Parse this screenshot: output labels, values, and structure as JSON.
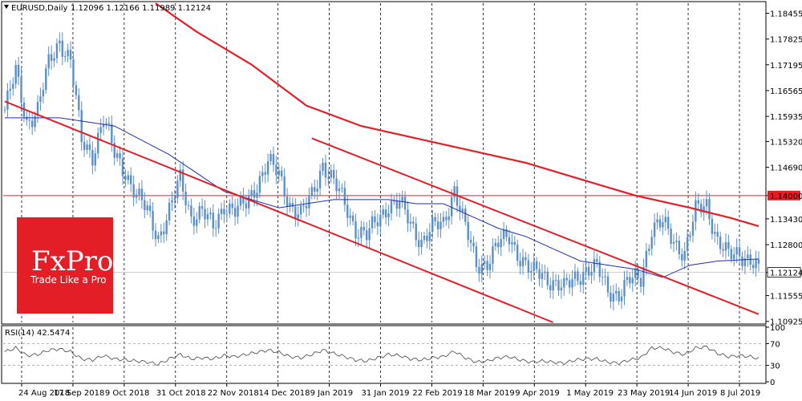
{
  "header": {
    "symbol": "EURUSD,Daily",
    "ohlc": "1.12096 1.12166 1.11989 1.12124"
  },
  "rsi_label": "RSI(14) 42.5474",
  "branding": {
    "logo_text": "FxPro",
    "tagline": "Trade Like a Pro",
    "color": "#e41e26"
  },
  "colors": {
    "candle": "#5b8fc9",
    "ma_fast": "#1e2dbe",
    "ma_slow": "#e41e26",
    "channel": "#e41e26",
    "level": "#e41e26",
    "rsi": "#555555"
  },
  "chart_data": [
    {
      "type": "candlestick",
      "symbol": "EURUSD",
      "timeframe": "Daily",
      "ylim": [
        1.109,
        1.187
      ],
      "y_ticks": [
        "1.18455",
        "1.17825",
        "1.17195",
        "1.16565",
        "1.15935",
        "1.15320",
        "1.14690",
        "1.14000",
        "1.13430",
        "1.12800",
        "1.12124",
        "1.11555",
        "1.10925"
      ],
      "x_ticks": [
        "24 Aug 2018",
        "17 Sep 2018",
        "9 Oct 2018",
        "31 Oct 2018",
        "22 Nov 2018",
        "14 Dec 2018",
        "9 Jan 2019",
        "31 Jan 2019",
        "22 Feb 2019",
        "18 Mar 2019",
        "9 Apr 2019",
        "1 May 2019",
        "23 May 2019",
        "14 Jun 2019",
        "8 Jul 2019"
      ],
      "price_path": [
        [
          0,
          1.161
        ],
        [
          4,
          1.17
        ],
        [
          8,
          1.158
        ],
        [
          12,
          1.161
        ],
        [
          16,
          1.172
        ],
        [
          20,
          1.178
        ],
        [
          24,
          1.173
        ],
        [
          28,
          1.153
        ],
        [
          32,
          1.15
        ],
        [
          36,
          1.159
        ],
        [
          40,
          1.15
        ],
        [
          44,
          1.146
        ],
        [
          48,
          1.14
        ],
        [
          52,
          1.136
        ],
        [
          56,
          1.13
        ],
        [
          60,
          1.136
        ],
        [
          64,
          1.144
        ],
        [
          68,
          1.135
        ],
        [
          72,
          1.136
        ],
        [
          76,
          1.132
        ],
        [
          80,
          1.138
        ],
        [
          84,
          1.136
        ],
        [
          88,
          1.138
        ],
        [
          92,
          1.143
        ],
        [
          96,
          1.148
        ],
        [
          100,
          1.145
        ],
        [
          104,
          1.138
        ],
        [
          108,
          1.135
        ],
        [
          112,
          1.14
        ],
        [
          116,
          1.148
        ],
        [
          120,
          1.143
        ],
        [
          124,
          1.138
        ],
        [
          128,
          1.132
        ],
        [
          132,
          1.13
        ],
        [
          136,
          1.134
        ],
        [
          140,
          1.138
        ],
        [
          144,
          1.138
        ],
        [
          148,
          1.133
        ],
        [
          152,
          1.129
        ],
        [
          156,
          1.132
        ],
        [
          160,
          1.133
        ],
        [
          164,
          1.142
        ],
        [
          168,
          1.132
        ],
        [
          172,
          1.123
        ],
        [
          176,
          1.124
        ],
        [
          180,
          1.128
        ],
        [
          184,
          1.13
        ],
        [
          188,
          1.125
        ],
        [
          192,
          1.121
        ],
        [
          196,
          1.121
        ],
        [
          200,
          1.119
        ],
        [
          204,
          1.117
        ],
        [
          208,
          1.12
        ],
        [
          212,
          1.122
        ],
        [
          216,
          1.122
        ],
        [
          220,
          1.117
        ],
        [
          224,
          1.116
        ],
        [
          228,
          1.119
        ],
        [
          232,
          1.12
        ],
        [
          236,
          1.132
        ],
        [
          240,
          1.133
        ],
        [
          244,
          1.129
        ],
        [
          248,
          1.126
        ],
        [
          252,
          1.136
        ],
        [
          256,
          1.138
        ],
        [
          260,
          1.129
        ],
        [
          264,
          1.125
        ],
        [
          268,
          1.126
        ],
        [
          272,
          1.1245
        ],
        [
          275,
          1.1212
        ]
      ],
      "current_price": "1.12124",
      "horizontal_level": "1.14000",
      "ma_fast": [
        [
          0,
          1.159
        ],
        [
          20,
          1.159
        ],
        [
          40,
          1.157
        ],
        [
          60,
          1.15
        ],
        [
          80,
          1.141
        ],
        [
          100,
          1.137
        ],
        [
          120,
          1.139
        ],
        [
          140,
          1.139
        ],
        [
          150,
          1.138
        ],
        [
          160,
          1.138
        ],
        [
          170,
          1.135
        ],
        [
          180,
          1.132
        ],
        [
          190,
          1.13
        ],
        [
          200,
          1.127
        ],
        [
          210,
          1.124
        ],
        [
          220,
          1.123
        ],
        [
          230,
          1.122
        ],
        [
          240,
          1.12
        ],
        [
          250,
          1.123
        ],
        [
          260,
          1.124
        ],
        [
          275,
          1.1245
        ]
      ],
      "ma_slow": [
        [
          55,
          1.187
        ],
        [
          70,
          1.18
        ],
        [
          90,
          1.172
        ],
        [
          110,
          1.162
        ],
        [
          130,
          1.157
        ],
        [
          150,
          1.154
        ],
        [
          170,
          1.151
        ],
        [
          190,
          1.148
        ],
        [
          210,
          1.144
        ],
        [
          230,
          1.14
        ],
        [
          250,
          1.137
        ],
        [
          265,
          1.1345
        ],
        [
          275,
          1.1325
        ]
      ],
      "channels": [
        {
          "from": [
            0,
            1.163
          ],
          "to": [
            200,
            1.109
          ]
        },
        {
          "from": [
            112,
            1.154
          ],
          "to": [
            275,
            1.111
          ]
        }
      ]
    },
    {
      "type": "line",
      "name": "RSI(14)",
      "ylim": [
        0,
        100
      ],
      "y_ticks": [
        "100",
        "70",
        "30",
        "0"
      ],
      "levels": [
        70,
        30
      ],
      "values": [
        [
          0,
          55
        ],
        [
          4,
          62
        ],
        [
          8,
          48
        ],
        [
          12,
          50
        ],
        [
          16,
          58
        ],
        [
          20,
          60
        ],
        [
          24,
          55
        ],
        [
          28,
          42
        ],
        [
          32,
          40
        ],
        [
          36,
          48
        ],
        [
          40,
          42
        ],
        [
          44,
          40
        ],
        [
          48,
          38
        ],
        [
          52,
          36
        ],
        [
          56,
          32
        ],
        [
          60,
          42
        ],
        [
          64,
          50
        ],
        [
          68,
          42
        ],
        [
          72,
          44
        ],
        [
          76,
          42
        ],
        [
          80,
          48
        ],
        [
          84,
          46
        ],
        [
          88,
          50
        ],
        [
          92,
          54
        ],
        [
          96,
          58
        ],
        [
          100,
          54
        ],
        [
          104,
          46
        ],
        [
          108,
          44
        ],
        [
          112,
          50
        ],
        [
          116,
          58
        ],
        [
          120,
          52
        ],
        [
          124,
          46
        ],
        [
          128,
          40
        ],
        [
          132,
          38
        ],
        [
          136,
          44
        ],
        [
          140,
          50
        ],
        [
          144,
          48
        ],
        [
          148,
          42
        ],
        [
          152,
          40
        ],
        [
          156,
          44
        ],
        [
          160,
          46
        ],
        [
          164,
          56
        ],
        [
          168,
          44
        ],
        [
          172,
          36
        ],
        [
          176,
          38
        ],
        [
          180,
          44
        ],
        [
          184,
          46
        ],
        [
          188,
          40
        ],
        [
          192,
          36
        ],
        [
          196,
          38
        ],
        [
          200,
          36
        ],
        [
          204,
          34
        ],
        [
          208,
          40
        ],
        [
          212,
          42
        ],
        [
          216,
          42
        ],
        [
          220,
          36
        ],
        [
          224,
          34
        ],
        [
          228,
          40
        ],
        [
          232,
          44
        ],
        [
          236,
          62
        ],
        [
          240,
          62
        ],
        [
          244,
          54
        ],
        [
          248,
          50
        ],
        [
          252,
          62
        ],
        [
          256,
          64
        ],
        [
          260,
          52
        ],
        [
          264,
          46
        ],
        [
          268,
          48
        ],
        [
          272,
          46
        ],
        [
          275,
          42.5
        ]
      ]
    }
  ]
}
